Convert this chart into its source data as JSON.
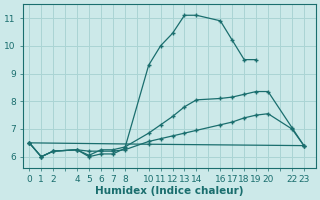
{
  "background_color": "#cce9e9",
  "grid_color": "#aad4d4",
  "line_color": "#1a6e6e",
  "xlabel": "Humidex (Indice chaleur)",
  "xlabel_fontsize": 7.5,
  "tick_fontsize": 6.5,
  "series": [
    {
      "x": [
        0,
        1,
        2,
        4,
        5,
        6,
        7,
        8,
        10,
        11,
        12,
        13,
        14,
        16,
        17,
        18,
        19
      ],
      "y": [
        6.5,
        6.0,
        6.2,
        6.25,
        6.0,
        6.1,
        6.1,
        6.3,
        9.3,
        10.0,
        10.45,
        11.1,
        11.1,
        10.9,
        10.2,
        9.5,
        9.5
      ]
    },
    {
      "x": [
        0,
        1,
        2,
        4,
        5,
        6,
        7,
        8,
        10,
        11,
        12,
        13,
        14,
        16,
        17,
        18,
        19,
        20,
        22,
        23
      ],
      "y": [
        6.5,
        6.0,
        6.2,
        6.25,
        6.05,
        6.25,
        6.25,
        6.35,
        6.85,
        7.15,
        7.45,
        7.8,
        8.05,
        8.1,
        8.15,
        8.25,
        8.35,
        8.35,
        7.05,
        6.4
      ]
    },
    {
      "x": [
        0,
        1,
        2,
        4,
        5,
        6,
        7,
        8,
        10,
        11,
        12,
        13,
        14,
        16,
        17,
        18,
        19,
        20,
        22,
        23
      ],
      "y": [
        6.5,
        6.0,
        6.2,
        6.25,
        6.2,
        6.2,
        6.2,
        6.25,
        6.55,
        6.65,
        6.75,
        6.85,
        6.95,
        7.15,
        7.25,
        7.4,
        7.5,
        7.55,
        7.0,
        6.4
      ]
    },
    {
      "x": [
        0,
        10,
        23
      ],
      "y": [
        6.5,
        6.45,
        6.4
      ]
    }
  ],
  "xlim": [
    -0.5,
    24
  ],
  "ylim": [
    5.6,
    11.5
  ],
  "yticks": [
    6,
    7,
    8,
    9,
    10,
    11
  ],
  "xtick_labels": [
    "0",
    "1",
    "2",
    "",
    "4",
    "5",
    "6",
    "7",
    "8",
    "",
    "10",
    "11",
    "12",
    "13",
    "14",
    "",
    "16",
    "17",
    "18",
    "19",
    "20",
    "",
    "22",
    "23"
  ],
  "xtick_positions": [
    0,
    1,
    2,
    3,
    4,
    5,
    6,
    7,
    8,
    9,
    10,
    11,
    12,
    13,
    14,
    15,
    16,
    17,
    18,
    19,
    20,
    21,
    22,
    23
  ]
}
